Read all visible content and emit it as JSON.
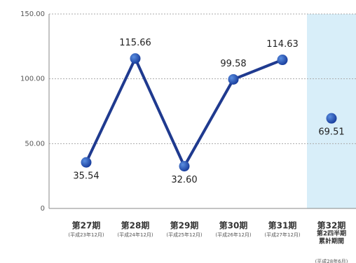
{
  "chart_data": {
    "type": "line",
    "categories": [
      [
        "第27期",
        "(平成23年12月)"
      ],
      [
        "第28期",
        "(平成24年12月)"
      ],
      [
        "第29期",
        "(平成25年12月)"
      ],
      [
        "第30期",
        "(平成26年12月)"
      ],
      [
        "第31期",
        "(平成27年12月)"
      ],
      [
        "第32期",
        "第2四半期",
        "累計期間",
        "(平成28年6月)"
      ]
    ],
    "series": [
      {
        "color": "#1f3a8f",
        "values": [
          35.54,
          115.66,
          32.6,
          99.58,
          114.63,
          null
        ],
        "value_labels": [
          "35.54",
          "115.66",
          "32.60",
          "99.58",
          "114.63",
          null
        ]
      },
      {
        "color": "#1f3a8f",
        "values": [
          null,
          null,
          null,
          null,
          null,
          69.51
        ],
        "value_labels": [
          null,
          null,
          null,
          null,
          null,
          "69.51"
        ]
      }
    ],
    "ylim": [
      0,
      150
    ],
    "yticks": [
      0,
      {
        "value": 50,
        "label": "50.00"
      },
      {
        "value": 100,
        "label": "100.00"
      },
      {
        "value": 150,
        "label": "150.00"
      }
    ],
    "grid": true,
    "highlight": {
      "index": 5,
      "color": "#d8eef9"
    }
  }
}
